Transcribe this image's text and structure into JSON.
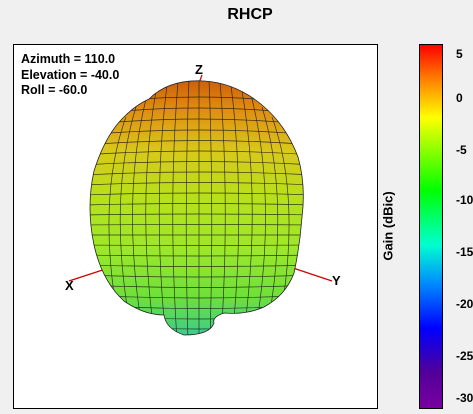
{
  "title": "RHCP",
  "view": {
    "azimuth": "Azimuth = 110.0",
    "elevation": "Elevation = -40.0",
    "roll": "Roll = -60.0"
  },
  "axes": {
    "z": "Z",
    "x": "X",
    "y": "Y"
  },
  "colorbar": {
    "label": "Gain (dBic)",
    "ticks": [
      "5",
      "0",
      "-5",
      "-10",
      "-15",
      "-20",
      "-25",
      "-30"
    ],
    "colors": [
      "#ff0000",
      "#ffff00",
      "#00ff00",
      "#00ffd0",
      "#0000ff",
      "#7a00a0"
    ]
  }
}
